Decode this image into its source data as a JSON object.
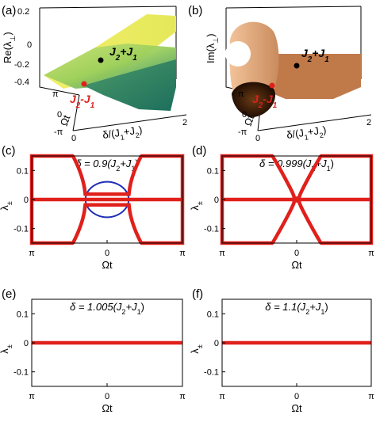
{
  "panels_3d": [
    {
      "id": "a",
      "label": "(a)",
      "zlabel": "Re(λ_⊥)",
      "zticks": [
        "0.2",
        "0",
        "-0.2",
        "-0.4"
      ],
      "yticks": [
        "π",
        "0",
        "-π"
      ],
      "xticks": [
        "0",
        "2"
      ],
      "ylabel": "Ωt",
      "xlabel": "δ/(J_1+J_2)",
      "points": [
        {
          "name": "J2+J1",
          "text": "J_2+J_1",
          "color": "#000000"
        },
        {
          "name": "J2-J1",
          "text": "J_2-J_1",
          "color": "#e0201b"
        }
      ]
    },
    {
      "id": "b",
      "label": "(b)",
      "zlabel": "Im(λ_⊥)",
      "yticks": [
        "π",
        "0",
        "-π"
      ],
      "xticks": [
        "0",
        "2"
      ],
      "ylabel": "Ωt",
      "xlabel": "δ/(J_1+J_2)",
      "points": [
        {
          "name": "J2+J1",
          "text": "J_2+J_1",
          "color": "#000000"
        },
        {
          "name": "J2-J1",
          "text": "J_2-J_1",
          "color": "#e0201b"
        }
      ]
    }
  ],
  "chart_data": [
    {
      "id": "c",
      "label": "(c)",
      "type": "line",
      "title": "δ = 0.9(J_2+J_1)",
      "ratio": 0.9,
      "xlabel": "Ωt",
      "ylabel": "λ_±",
      "xticks": [
        "π",
        "0",
        "π"
      ],
      "yticks": [
        "0.1",
        "0",
        "-0.1"
      ],
      "xlim": [
        -3.1416,
        3.1416
      ],
      "ylim": [
        -0.15,
        0.15
      ],
      "series": [
        {
          "style": "blue",
          "values": "upper branch Re λ+"
        },
        {
          "style": "blue",
          "values": "lower branch Re λ-"
        },
        {
          "style": "red",
          "values": "Im λ (zero line and exceptional ring)"
        }
      ]
    },
    {
      "id": "d",
      "label": "(d)",
      "type": "line",
      "title": "δ = 0.999(J_2+J_1)",
      "ratio": 0.999,
      "xlabel": "Ωt",
      "ylabel": "λ_±",
      "xticks": [
        "π",
        "0",
        "π"
      ],
      "yticks": [
        "0.1",
        "0",
        "-0.1"
      ],
      "xlim": [
        -3.1416,
        3.1416
      ],
      "ylim": [
        -0.15,
        0.15
      ]
    },
    {
      "id": "e",
      "label": "(e)",
      "type": "line",
      "title": "δ = 1.005(J_2+J_1)",
      "ratio": 1.005,
      "xlabel": "Ωt",
      "ylabel": "λ_±",
      "xticks": [
        "π",
        "0",
        "π"
      ],
      "yticks": [
        "0.1",
        "0",
        "-0.1"
      ],
      "xlim": [
        -3.1416,
        3.1416
      ],
      "ylim": [
        -0.15,
        0.15
      ]
    },
    {
      "id": "f",
      "label": "(f)",
      "type": "line",
      "title": "δ = 1.1(J_2+J_1)",
      "ratio": 1.1,
      "xlabel": "Ωt",
      "ylabel": "λ_±",
      "xticks": [
        "π",
        "0",
        "π"
      ],
      "yticks": [
        "0.1",
        "0",
        "-0.1"
      ],
      "xlim": [
        -3.1416,
        3.1416
      ],
      "ylim": [
        -0.15,
        0.15
      ]
    }
  ],
  "colors": {
    "blue": "#1f2fb5",
    "red": "#e0201b"
  }
}
